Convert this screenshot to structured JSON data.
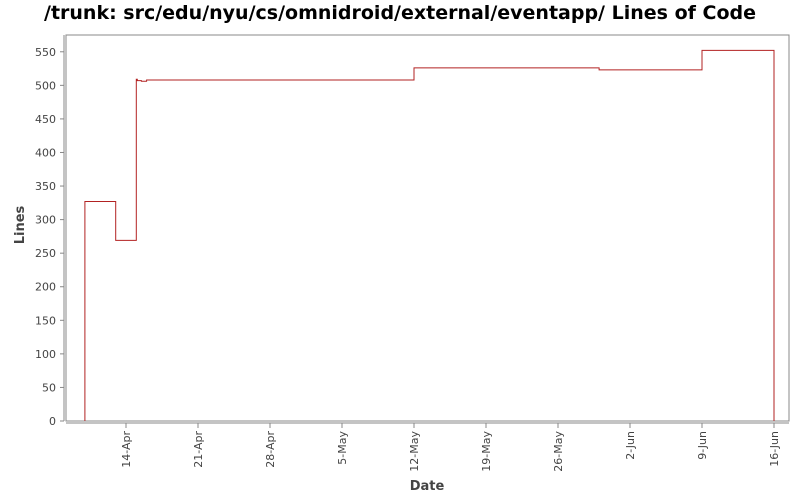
{
  "chart_data": {
    "type": "line",
    "title": "/trunk: src/edu/nyu/cs/omnidroid/external/eventapp/ Lines of Code",
    "xlabel": "Date",
    "ylabel": "Lines",
    "x_ticks": [
      "14-Apr",
      "21-Apr",
      "28-Apr",
      "5-May",
      "12-May",
      "19-May",
      "26-May",
      "2-Jun",
      "9-Jun",
      "16-Jun"
    ],
    "ylim": [
      0,
      575
    ],
    "y_ticks": [
      0,
      50,
      100,
      150,
      200,
      250,
      300,
      350,
      400,
      450,
      500,
      550
    ],
    "grid": false,
    "line_color": "#b22222",
    "step": true,
    "series": [
      {
        "x": [
          "2008-04-10",
          "2008-04-10",
          "2008-04-13",
          "2008-04-15",
          "2008-04-15.1",
          "2008-04-15.5",
          "2008-04-16",
          "2008-05-12",
          "2008-05-30",
          "2008-06-09",
          "2008-06-16",
          "2008-06-16"
        ],
        "y": [
          0,
          327,
          269,
          509,
          507,
          506,
          508,
          526,
          523,
          552,
          552,
          0
        ]
      }
    ]
  }
}
